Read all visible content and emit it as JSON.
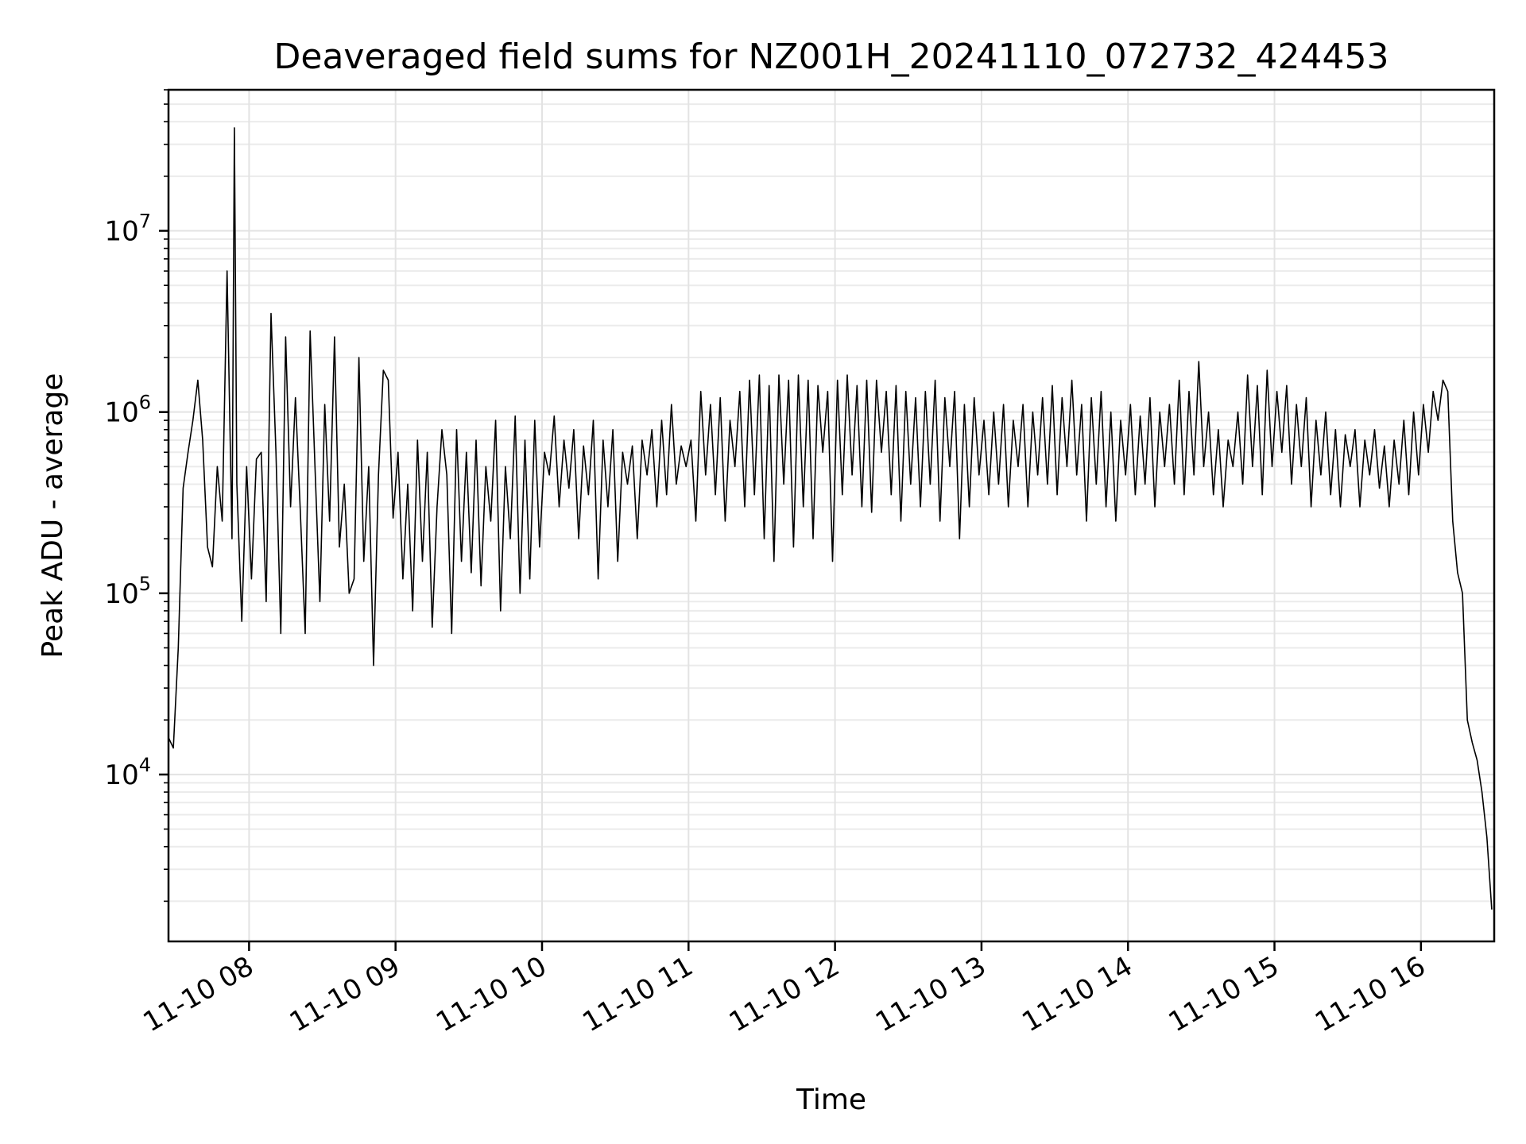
{
  "chart_data": {
    "type": "line",
    "title": "Deaveraged field sums for NZ001H_20241110_072732_424453",
    "xlabel": "Time",
    "ylabel": "Peak ADU - average",
    "yscale": "log",
    "ylim": [
      1200,
      60000000
    ],
    "xlim": [
      "2024-11-10 07:27",
      "2024-11-10 16:30"
    ],
    "grid": true,
    "legend": "none",
    "line_color": "#000000",
    "x_ticks": [
      {
        "value": "2024-11-10 08:00",
        "label": "11-10 08"
      },
      {
        "value": "2024-11-10 09:00",
        "label": "11-10 09"
      },
      {
        "value": "2024-11-10 10:00",
        "label": "11-10 10"
      },
      {
        "value": "2024-11-10 11:00",
        "label": "11-10 11"
      },
      {
        "value": "2024-11-10 12:00",
        "label": "11-10 12"
      },
      {
        "value": "2024-11-10 13:00",
        "label": "11-10 13"
      },
      {
        "value": "2024-11-10 14:00",
        "label": "11-10 14"
      },
      {
        "value": "2024-11-10 15:00",
        "label": "11-10 15"
      },
      {
        "value": "2024-11-10 16:00",
        "label": "11-10 16"
      }
    ],
    "y_ticks": [
      {
        "value": 10000,
        "base": "10",
        "exp": "4"
      },
      {
        "value": 100000,
        "base": "10",
        "exp": "5"
      },
      {
        "value": 1000000,
        "base": "10",
        "exp": "6"
      },
      {
        "value": 10000000,
        "base": "10",
        "exp": "7"
      }
    ],
    "series": [
      {
        "x": [
          "2024-11-10 07:27",
          "2024-11-10 07:29",
          "2024-11-10 07:31",
          "2024-11-10 07:33",
          "2024-11-10 07:35",
          "2024-11-10 07:37",
          "2024-11-10 07:39",
          "2024-11-10 07:41",
          "2024-11-10 07:43",
          "2024-11-10 07:45",
          "2024-11-10 07:47",
          "2024-11-10 07:49",
          "2024-11-10 07:51",
          "2024-11-10 07:53",
          "2024-11-10 07:54",
          "2024-11-10 07:55",
          "2024-11-10 07:57",
          "2024-11-10 07:59",
          "2024-11-10 08:01",
          "2024-11-10 08:03",
          "2024-11-10 08:05",
          "2024-11-10 08:07",
          "2024-11-10 08:09",
          "2024-11-10 08:11",
          "2024-11-10 08:13",
          "2024-11-10 08:15",
          "2024-11-10 08:17",
          "2024-11-10 08:19",
          "2024-11-10 08:21",
          "2024-11-10 08:23",
          "2024-11-10 08:25",
          "2024-11-10 08:27",
          "2024-11-10 08:29",
          "2024-11-10 08:31",
          "2024-11-10 08:33",
          "2024-11-10 08:35",
          "2024-11-10 08:37",
          "2024-11-10 08:39",
          "2024-11-10 08:41",
          "2024-11-10 08:43",
          "2024-11-10 08:45",
          "2024-11-10 08:47",
          "2024-11-10 08:49",
          "2024-11-10 08:51",
          "2024-11-10 08:53",
          "2024-11-10 08:55",
          "2024-11-10 08:57",
          "2024-11-10 08:59",
          "2024-11-10 09:01",
          "2024-11-10 09:03",
          "2024-11-10 09:05",
          "2024-11-10 09:07",
          "2024-11-10 09:09",
          "2024-11-10 09:11",
          "2024-11-10 09:13",
          "2024-11-10 09:15",
          "2024-11-10 09:17",
          "2024-11-10 09:19",
          "2024-11-10 09:21",
          "2024-11-10 09:23",
          "2024-11-10 09:25",
          "2024-11-10 09:27",
          "2024-11-10 09:29",
          "2024-11-10 09:31",
          "2024-11-10 09:33",
          "2024-11-10 09:35",
          "2024-11-10 09:37",
          "2024-11-10 09:39",
          "2024-11-10 09:41",
          "2024-11-10 09:43",
          "2024-11-10 09:45",
          "2024-11-10 09:47",
          "2024-11-10 09:49",
          "2024-11-10 09:51",
          "2024-11-10 09:53",
          "2024-11-10 09:55",
          "2024-11-10 09:57",
          "2024-11-10 09:59",
          "2024-11-10 10:01",
          "2024-11-10 10:03",
          "2024-11-10 10:05",
          "2024-11-10 10:07",
          "2024-11-10 10:09",
          "2024-11-10 10:11",
          "2024-11-10 10:13",
          "2024-11-10 10:15",
          "2024-11-10 10:17",
          "2024-11-10 10:19",
          "2024-11-10 10:21",
          "2024-11-10 10:23",
          "2024-11-10 10:25",
          "2024-11-10 10:27",
          "2024-11-10 10:29",
          "2024-11-10 10:31",
          "2024-11-10 10:33",
          "2024-11-10 10:35",
          "2024-11-10 10:37",
          "2024-11-10 10:39",
          "2024-11-10 10:41",
          "2024-11-10 10:43",
          "2024-11-10 10:45",
          "2024-11-10 10:47",
          "2024-11-10 10:49",
          "2024-11-10 10:51",
          "2024-11-10 10:53",
          "2024-11-10 10:55",
          "2024-11-10 10:57",
          "2024-11-10 10:59",
          "2024-11-10 11:01",
          "2024-11-10 11:03",
          "2024-11-10 11:05",
          "2024-11-10 11:07",
          "2024-11-10 11:09",
          "2024-11-10 11:11",
          "2024-11-10 11:13",
          "2024-11-10 11:15",
          "2024-11-10 11:17",
          "2024-11-10 11:19",
          "2024-11-10 11:21",
          "2024-11-10 11:23",
          "2024-11-10 11:25",
          "2024-11-10 11:27",
          "2024-11-10 11:29",
          "2024-11-10 11:31",
          "2024-11-10 11:33",
          "2024-11-10 11:35",
          "2024-11-10 11:37",
          "2024-11-10 11:39",
          "2024-11-10 11:41",
          "2024-11-10 11:43",
          "2024-11-10 11:45",
          "2024-11-10 11:47",
          "2024-11-10 11:49",
          "2024-11-10 11:51",
          "2024-11-10 11:53",
          "2024-11-10 11:55",
          "2024-11-10 11:57",
          "2024-11-10 11:59",
          "2024-11-10 12:01",
          "2024-11-10 12:03",
          "2024-11-10 12:05",
          "2024-11-10 12:07",
          "2024-11-10 12:09",
          "2024-11-10 12:11",
          "2024-11-10 12:13",
          "2024-11-10 12:15",
          "2024-11-10 12:17",
          "2024-11-10 12:19",
          "2024-11-10 12:21",
          "2024-11-10 12:23",
          "2024-11-10 12:25",
          "2024-11-10 12:27",
          "2024-11-10 12:29",
          "2024-11-10 12:31",
          "2024-11-10 12:33",
          "2024-11-10 12:35",
          "2024-11-10 12:37",
          "2024-11-10 12:39",
          "2024-11-10 12:41",
          "2024-11-10 12:43",
          "2024-11-10 12:45",
          "2024-11-10 12:47",
          "2024-11-10 12:49",
          "2024-11-10 12:51",
          "2024-11-10 12:53",
          "2024-11-10 12:55",
          "2024-11-10 12:57",
          "2024-11-10 12:59",
          "2024-11-10 13:01",
          "2024-11-10 13:03",
          "2024-11-10 13:05",
          "2024-11-10 13:07",
          "2024-11-10 13:09",
          "2024-11-10 13:11",
          "2024-11-10 13:13",
          "2024-11-10 13:15",
          "2024-11-10 13:17",
          "2024-11-10 13:19",
          "2024-11-10 13:21",
          "2024-11-10 13:23",
          "2024-11-10 13:25",
          "2024-11-10 13:27",
          "2024-11-10 13:29",
          "2024-11-10 13:31",
          "2024-11-10 13:33",
          "2024-11-10 13:35",
          "2024-11-10 13:37",
          "2024-11-10 13:39",
          "2024-11-10 13:41",
          "2024-11-10 13:43",
          "2024-11-10 13:45",
          "2024-11-10 13:47",
          "2024-11-10 13:49",
          "2024-11-10 13:51",
          "2024-11-10 13:53",
          "2024-11-10 13:55",
          "2024-11-10 13:57",
          "2024-11-10 13:59",
          "2024-11-10 14:01",
          "2024-11-10 14:03",
          "2024-11-10 14:05",
          "2024-11-10 14:07",
          "2024-11-10 14:09",
          "2024-11-10 14:11",
          "2024-11-10 14:13",
          "2024-11-10 14:15",
          "2024-11-10 14:17",
          "2024-11-10 14:19",
          "2024-11-10 14:21",
          "2024-11-10 14:23",
          "2024-11-10 14:25",
          "2024-11-10 14:27",
          "2024-11-10 14:29",
          "2024-11-10 14:31",
          "2024-11-10 14:33",
          "2024-11-10 14:35",
          "2024-11-10 14:37",
          "2024-11-10 14:39",
          "2024-11-10 14:41",
          "2024-11-10 14:43",
          "2024-11-10 14:45",
          "2024-11-10 14:47",
          "2024-11-10 14:49",
          "2024-11-10 14:51",
          "2024-11-10 14:53",
          "2024-11-10 14:55",
          "2024-11-10 14:57",
          "2024-11-10 14:59",
          "2024-11-10 15:01",
          "2024-11-10 15:03",
          "2024-11-10 15:05",
          "2024-11-10 15:07",
          "2024-11-10 15:09",
          "2024-11-10 15:11",
          "2024-11-10 15:13",
          "2024-11-10 15:15",
          "2024-11-10 15:17",
          "2024-11-10 15:19",
          "2024-11-10 15:21",
          "2024-11-10 15:23",
          "2024-11-10 15:25",
          "2024-11-10 15:27",
          "2024-11-10 15:29",
          "2024-11-10 15:31",
          "2024-11-10 15:33",
          "2024-11-10 15:35",
          "2024-11-10 15:37",
          "2024-11-10 15:39",
          "2024-11-10 15:41",
          "2024-11-10 15:43",
          "2024-11-10 15:45",
          "2024-11-10 15:47",
          "2024-11-10 15:49",
          "2024-11-10 15:51",
          "2024-11-10 15:53",
          "2024-11-10 15:55",
          "2024-11-10 15:57",
          "2024-11-10 15:59",
          "2024-11-10 16:01",
          "2024-11-10 16:03",
          "2024-11-10 16:05",
          "2024-11-10 16:07",
          "2024-11-10 16:09",
          "2024-11-10 16:11",
          "2024-11-10 16:13",
          "2024-11-10 16:15",
          "2024-11-10 16:17",
          "2024-11-10 16:19",
          "2024-11-10 16:21",
          "2024-11-10 16:23",
          "2024-11-10 16:25",
          "2024-11-10 16:27",
          "2024-11-10 16:29"
        ],
        "y": [
          16000,
          14000,
          50000,
          380000,
          600000,
          900000,
          1500000,
          700000,
          180000,
          140000,
          500000,
          250000,
          6000000,
          200000,
          37000000,
          400000,
          70000,
          500000,
          120000,
          550000,
          600000,
          90000,
          3500000,
          600000,
          60000,
          2600000,
          300000,
          1200000,
          280000,
          60000,
          2800000,
          500000,
          90000,
          1100000,
          250000,
          2600000,
          180000,
          400000,
          100000,
          120000,
          2000000,
          150000,
          500000,
          40000,
          450000,
          1700000,
          1500000,
          260000,
          600000,
          120000,
          400000,
          80000,
          700000,
          150000,
          600000,
          65000,
          300000,
          800000,
          450000,
          60000,
          800000,
          150000,
          600000,
          130000,
          700000,
          110000,
          500000,
          250000,
          900000,
          80000,
          500000,
          200000,
          950000,
          100000,
          700000,
          120000,
          900000,
          180000,
          600000,
          450000,
          950000,
          300000,
          700000,
          380000,
          800000,
          200000,
          650000,
          350000,
          900000,
          120000,
          700000,
          300000,
          800000,
          150000,
          600000,
          400000,
          650000,
          200000,
          700000,
          450000,
          800000,
          300000,
          900000,
          350000,
          1100000,
          400000,
          650000,
          500000,
          700000,
          250000,
          1300000,
          450000,
          1100000,
          350000,
          1200000,
          250000,
          900000,
          500000,
          1300000,
          300000,
          1500000,
          350000,
          1600000,
          200000,
          1400000,
          150000,
          1600000,
          400000,
          1500000,
          180000,
          1600000,
          300000,
          1500000,
          200000,
          1400000,
          600000,
          1300000,
          150000,
          1500000,
          350000,
          1600000,
          450000,
          1400000,
          300000,
          1500000,
          280000,
          1500000,
          600000,
          1300000,
          350000,
          1400000,
          250000,
          1300000,
          400000,
          1200000,
          300000,
          1300000,
          400000,
          1500000,
          250000,
          1200000,
          500000,
          1300000,
          200000,
          1100000,
          300000,
          1200000,
          450000,
          900000,
          350000,
          1000000,
          400000,
          1100000,
          300000,
          900000,
          500000,
          1100000,
          300000,
          1000000,
          450000,
          1200000,
          400000,
          1400000,
          350000,
          1200000,
          500000,
          1500000,
          450000,
          1100000,
          250000,
          1200000,
          400000,
          1300000,
          300000,
          1000000,
          250000,
          900000,
          450000,
          1100000,
          350000,
          950000,
          400000,
          1200000,
          300000,
          1000000,
          500000,
          1100000,
          400000,
          1500000,
          350000,
          1300000,
          450000,
          1900000,
          500000,
          1000000,
          350000,
          800000,
          300000,
          700000,
          500000,
          1000000,
          400000,
          1600000,
          500000,
          1400000,
          350000,
          1700000,
          500000,
          1300000,
          600000,
          1400000,
          400000,
          1100000,
          500000,
          1200000,
          300000,
          900000,
          450000,
          1000000,
          350000,
          800000,
          300000,
          750000,
          500000,
          800000,
          300000,
          700000,
          450000,
          800000,
          380000,
          650000,
          300000,
          700000,
          400000,
          900000,
          350000,
          1000000,
          450000,
          1100000,
          600000,
          1300000,
          900000,
          1500000,
          1300000,
          250000,
          130000,
          100000,
          20000,
          15000,
          12000,
          8000,
          4500,
          1800
        ]
      }
    ]
  }
}
